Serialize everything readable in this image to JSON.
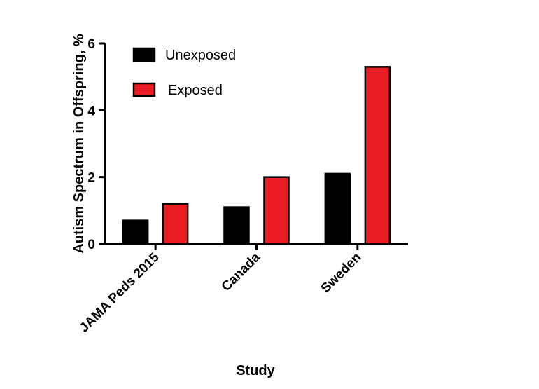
{
  "chart_data": {
    "type": "bar",
    "title": "",
    "xlabel": "Study",
    "ylabel": "Autism  Spectrum in Offspring, %",
    "categories": [
      "JAMA Peds 2015",
      "Canada",
      "Sweden"
    ],
    "series": [
      {
        "name": "Unexposed",
        "color": "#000000",
        "values": [
          0.7,
          1.1,
          2.1
        ]
      },
      {
        "name": "Exposed",
        "color": "#ec1c24",
        "values": [
          1.2,
          2.0,
          5.3
        ]
      }
    ],
    "ylim": [
      0,
      6
    ],
    "yticks": [
      "0",
      "2",
      "4",
      "6"
    ],
    "legend_position": "top-left",
    "grid": false
  }
}
